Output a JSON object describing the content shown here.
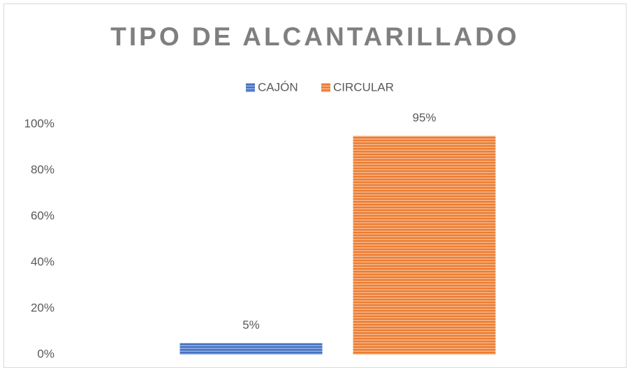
{
  "chart_data": {
    "type": "bar",
    "title": "TIPO DE ALCANTARILLADO",
    "categories": [
      null
    ],
    "series": [
      {
        "name": "CAJÓN",
        "color": "#4472c4",
        "values": [
          5
        ],
        "value_labels": [
          "5%"
        ]
      },
      {
        "name": "CIRCULAR",
        "color": "#ed7d31",
        "values": [
          95
        ],
        "value_labels": [
          "95%"
        ]
      }
    ],
    "ylim": [
      0,
      100
    ],
    "yticks": [
      {
        "value": 0,
        "label": "0%"
      },
      {
        "value": 20,
        "label": "20%"
      },
      {
        "value": 40,
        "label": "40%"
      },
      {
        "value": 60,
        "label": "60%"
      },
      {
        "value": 80,
        "label": "80%"
      },
      {
        "value": 100,
        "label": "100%"
      }
    ],
    "grid": false,
    "legend": "top"
  }
}
